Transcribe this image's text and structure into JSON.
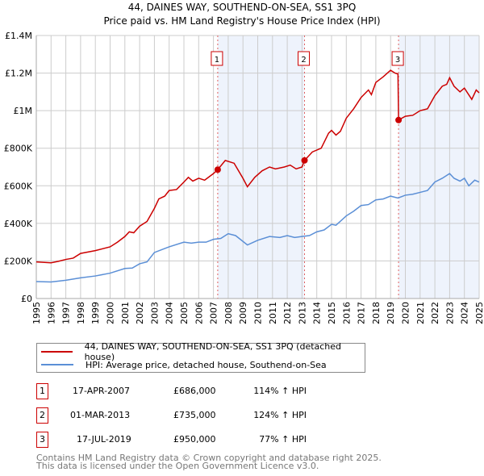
{
  "chart_data": {
    "type": "line",
    "title": "44, DAINES WAY, SOUTHEND-ON-SEA, SS1 3PQ",
    "subtitle": "Price paid vs. HM Land Registry's House Price Index (HPI)",
    "xlim": [
      1995,
      2025
    ],
    "ylim": [
      0,
      1400000
    ],
    "x_ticks": [
      "1995",
      "1996",
      "1997",
      "1998",
      "1999",
      "2000",
      "2001",
      "2002",
      "2003",
      "2004",
      "2005",
      "2006",
      "2007",
      "2008",
      "2009",
      "2010",
      "2011",
      "2012",
      "2013",
      "2014",
      "2015",
      "2016",
      "2017",
      "2018",
      "2019",
      "2020",
      "2021",
      "2022",
      "2023",
      "2024",
      "2025"
    ],
    "y_ticks": [
      {
        "v": 0,
        "label": "£0"
      },
      {
        "v": 200000,
        "label": "£200K"
      },
      {
        "v": 400000,
        "label": "£400K"
      },
      {
        "v": 600000,
        "label": "£600K"
      },
      {
        "v": 800000,
        "label": "£800K"
      },
      {
        "v": 1000000,
        "label": "£1M"
      },
      {
        "v": 1200000,
        "label": "£1.2M"
      },
      {
        "v": 1400000,
        "label": "£1.4M"
      }
    ],
    "grid": true,
    "series": [
      {
        "name": "44, DAINES WAY, SOUTHEND-ON-SEA, SS1 3PQ (detached house)",
        "color": "#cc0000",
        "x": [
          1995,
          1996,
          1996.5,
          1997,
          1997.5,
          1998,
          1999,
          2000,
          2000.5,
          2001,
          2001.3,
          2001.6,
          2002,
          2002.5,
          2003,
          2003.3,
          2003.7,
          2004,
          2004.5,
          2005,
          2005.3,
          2005.6,
          2006,
          2006.4,
          2007,
          2007.29,
          2007.8,
          2008.4,
          2009,
          2009.3,
          2009.8,
          2010.3,
          2010.8,
          2011.2,
          2011.8,
          2012.2,
          2012.6,
          2013.0,
          2013.17,
          2013.7,
          2014.3,
          2014.8,
          2015,
          2015.3,
          2015.6,
          2016,
          2016.5,
          2017,
          2017.5,
          2017.7,
          2018,
          2018.5,
          2019,
          2019.3,
          2019.5,
          2019.54,
          2020,
          2020.5,
          2021,
          2021.5,
          2022,
          2022.5,
          2022.8,
          2023,
          2023.3,
          2023.7,
          2024,
          2024.5,
          2024.8,
          2025
        ],
        "y": [
          195000,
          190000,
          198000,
          208000,
          215000,
          240000,
          255000,
          275000,
          300000,
          330000,
          355000,
          350000,
          385000,
          410000,
          480000,
          530000,
          545000,
          575000,
          580000,
          620000,
          645000,
          625000,
          640000,
          630000,
          665000,
          686000,
          735000,
          720000,
          640000,
          595000,
          645000,
          680000,
          700000,
          690000,
          700000,
          710000,
          690000,
          700000,
          735000,
          780000,
          800000,
          880000,
          895000,
          870000,
          890000,
          960000,
          1010000,
          1070000,
          1110000,
          1085000,
          1150000,
          1180000,
          1215000,
          1200000,
          1195000,
          950000,
          970000,
          975000,
          1000000,
          1010000,
          1080000,
          1130000,
          1140000,
          1175000,
          1130000,
          1100000,
          1120000,
          1060000,
          1110000,
          1095000
        ]
      },
      {
        "name": "HPI: Average price, detached house, Southend-on-Sea",
        "color": "#5b8fd6",
        "x": [
          1995,
          1996,
          1997,
          1998,
          1999,
          2000,
          2001,
          2001.5,
          2002,
          2002.5,
          2003,
          2003.5,
          2004,
          2005,
          2005.5,
          2006,
          2006.5,
          2007,
          2007.5,
          2008,
          2008.5,
          2009.3,
          2010,
          2010.8,
          2011.5,
          2012,
          2012.5,
          2013,
          2013.5,
          2014,
          2014.5,
          2015,
          2015.3,
          2016,
          2016.5,
          2017,
          2017.5,
          2018,
          2018.5,
          2019,
          2019.5,
          2020,
          2020.5,
          2021,
          2021.5,
          2022,
          2022.5,
          2023,
          2023.3,
          2023.7,
          2024,
          2024.3,
          2024.7,
          2025
        ],
        "y": [
          90000,
          88000,
          97000,
          110000,
          120000,
          135000,
          160000,
          162000,
          185000,
          195000,
          245000,
          260000,
          275000,
          300000,
          295000,
          300000,
          300000,
          315000,
          320000,
          345000,
          335000,
          285000,
          310000,
          330000,
          325000,
          335000,
          325000,
          330000,
          335000,
          355000,
          365000,
          395000,
          390000,
          440000,
          465000,
          495000,
          500000,
          525000,
          530000,
          545000,
          535000,
          550000,
          555000,
          565000,
          575000,
          620000,
          640000,
          665000,
          640000,
          625000,
          640000,
          600000,
          630000,
          620000
        ]
      }
    ],
    "sales": [
      {
        "label": "1",
        "x": 2007.29,
        "price": 686000,
        "date": "17-APR-2007",
        "price_text": "£686,000",
        "hpi": "114% ↑ HPI"
      },
      {
        "label": "2",
        "x": 2013.17,
        "price": 735000,
        "date": "01-MAR-2013",
        "price_text": "£735,000",
        "hpi": "124% ↑ HPI"
      },
      {
        "label": "3",
        "x": 2019.54,
        "price": 950000,
        "date": "17-JUL-2019",
        "price_text": "£950,000",
        "hpi": "77% ↑ HPI"
      }
    ],
    "shaded_ranges": [
      [
        2007.29,
        2013.17
      ],
      [
        2019.54,
        2025
      ]
    ],
    "legend_position": "bottom"
  },
  "footer": {
    "line1": "Contains HM Land Registry data © Crown copyright and database right 2025.",
    "line2": "This data is licensed under the Open Government Licence v3.0."
  }
}
